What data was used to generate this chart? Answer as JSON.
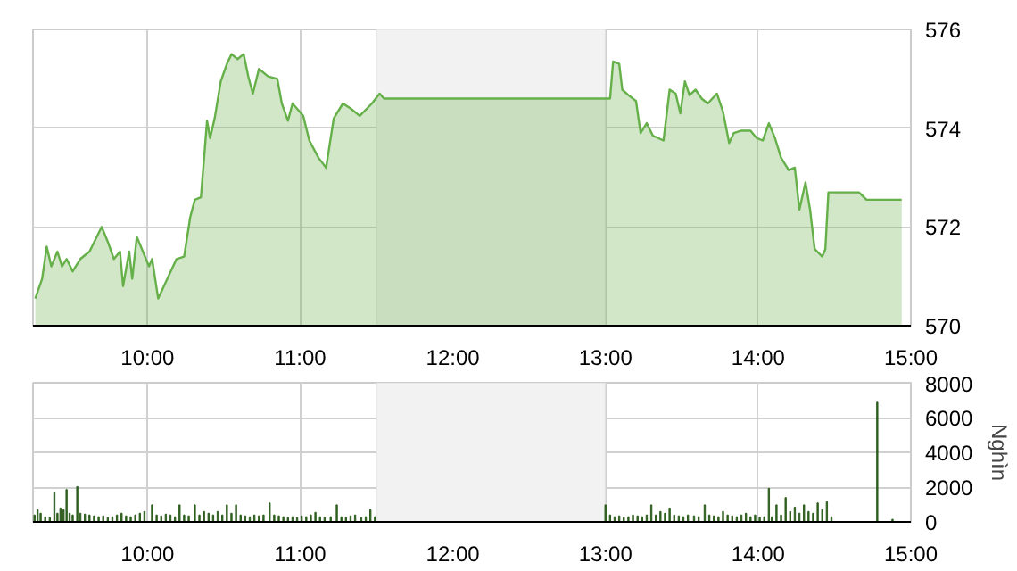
{
  "chart_data": [
    {
      "type": "area",
      "xlim": [
        9.25,
        15.0
      ],
      "ylim": [
        570,
        576
      ],
      "yticks": [
        570,
        572,
        574,
        576
      ],
      "xticks": [
        {
          "value": 10,
          "label": "10:00"
        },
        {
          "value": 11,
          "label": "11:00"
        },
        {
          "value": 12,
          "label": "12:00"
        },
        {
          "value": 13,
          "label": "13:00"
        },
        {
          "value": 14,
          "label": "14:00"
        },
        {
          "value": 15,
          "label": "15:00"
        }
      ],
      "grid": true,
      "bands": [
        {
          "axis": "x",
          "from": 11.5,
          "to": 13.0,
          "color": "#f2f2f2"
        }
      ],
      "series": [
        {
          "color": "#66b04a",
          "x": [
            9.265,
            9.31,
            9.34,
            9.37,
            9.41,
            9.44,
            9.47,
            9.51,
            9.56,
            9.62,
            9.7,
            9.74,
            9.78,
            9.82,
            9.84,
            9.88,
            9.9,
            9.93,
            9.97,
            10.01,
            10.03,
            10.07,
            10.13,
            10.19,
            10.24,
            10.28,
            10.31,
            10.35,
            10.39,
            10.41,
            10.44,
            10.48,
            10.52,
            10.55,
            10.59,
            10.63,
            10.66,
            10.69,
            10.73,
            10.79,
            10.85,
            10.88,
            10.92,
            10.95,
            11.02,
            11.06,
            11.12,
            11.17,
            11.22,
            11.28,
            11.33,
            11.39,
            11.47,
            11.52,
            11.55,
            12.3,
            13.03,
            13.05,
            13.09,
            13.11,
            13.15,
            13.2,
            13.23,
            13.27,
            13.31,
            13.38,
            13.42,
            13.46,
            13.49,
            13.52,
            13.55,
            13.59,
            13.63,
            13.67,
            13.73,
            13.77,
            13.81,
            13.84,
            13.89,
            13.95,
            13.99,
            14.03,
            14.07,
            14.11,
            14.15,
            14.2,
            14.24,
            14.27,
            14.31,
            14.34,
            14.37,
            14.42,
            14.44,
            14.46,
            14.66,
            14.71,
            14.94
          ],
          "values": [
            570.55,
            570.95,
            571.6,
            571.2,
            571.5,
            571.2,
            571.35,
            571.1,
            571.35,
            571.5,
            572.0,
            571.7,
            571.35,
            571.5,
            570.8,
            571.5,
            570.95,
            571.8,
            571.5,
            571.2,
            571.35,
            570.55,
            570.95,
            571.35,
            571.4,
            572.2,
            572.55,
            572.6,
            574.15,
            573.8,
            574.2,
            574.95,
            575.3,
            575.5,
            575.4,
            575.5,
            575.05,
            574.7,
            575.2,
            575.05,
            575.0,
            574.5,
            574.15,
            574.5,
            574.25,
            573.75,
            573.4,
            573.2,
            574.2,
            574.5,
            574.4,
            574.25,
            574.5,
            574.7,
            574.6,
            574.6,
            574.6,
            575.35,
            575.3,
            574.78,
            574.67,
            574.55,
            573.9,
            574.1,
            573.85,
            573.75,
            574.78,
            574.7,
            574.3,
            574.95,
            574.67,
            574.78,
            574.6,
            574.5,
            574.7,
            574.33,
            573.7,
            573.9,
            573.95,
            573.95,
            573.8,
            573.75,
            574.1,
            573.8,
            573.4,
            573.15,
            573.2,
            572.35,
            572.9,
            572.35,
            571.55,
            571.4,
            571.55,
            572.7,
            572.7,
            572.55,
            572.55
          ]
        }
      ]
    },
    {
      "type": "bar",
      "xlim": [
        9.25,
        15.0
      ],
      "ylim": [
        0,
        8000
      ],
      "yticks": [
        0,
        2000,
        4000,
        6000,
        8000
      ],
      "ylabel": "Nghìn",
      "xticks": [
        {
          "value": 10,
          "label": "10:00"
        },
        {
          "value": 11,
          "label": "11:00"
        },
        {
          "value": 12,
          "label": "12:00"
        },
        {
          "value": 13,
          "label": "13:00"
        },
        {
          "value": 14,
          "label": "14:00"
        },
        {
          "value": 15,
          "label": "15:00"
        }
      ],
      "grid": true,
      "bands": [
        {
          "axis": "x",
          "from": 11.5,
          "to": 13.0,
          "color": "#f2f2f2"
        }
      ],
      "series": [
        {
          "color": "#2f5f1f",
          "x": [
            9.26,
            9.28,
            9.3,
            9.33,
            9.36,
            9.39,
            9.41,
            9.43,
            9.45,
            9.47,
            9.49,
            9.51,
            9.54,
            9.56,
            9.59,
            9.62,
            9.65,
            9.68,
            9.71,
            9.74,
            9.77,
            9.8,
            9.83,
            9.86,
            9.89,
            9.92,
            9.95,
            9.98,
            10.03,
            10.06,
            10.09,
            10.12,
            10.15,
            10.18,
            10.21,
            10.24,
            10.27,
            10.31,
            10.34,
            10.37,
            10.4,
            10.43,
            10.46,
            10.49,
            10.52,
            10.55,
            10.58,
            10.61,
            10.64,
            10.67,
            10.7,
            10.73,
            10.76,
            10.8,
            10.83,
            10.86,
            10.89,
            10.92,
            10.95,
            10.98,
            11.01,
            11.04,
            11.07,
            11.1,
            11.13,
            11.16,
            11.2,
            11.24,
            11.27,
            11.3,
            11.33,
            11.36,
            11.4,
            11.43,
            11.46,
            11.49,
            13.0,
            13.03,
            13.06,
            13.09,
            13.12,
            13.15,
            13.18,
            13.21,
            13.24,
            13.27,
            13.3,
            13.33,
            13.36,
            13.39,
            13.42,
            13.45,
            13.48,
            13.51,
            13.54,
            13.58,
            13.61,
            13.65,
            13.68,
            13.71,
            13.74,
            13.77,
            13.8,
            13.83,
            13.86,
            13.89,
            13.92,
            13.95,
            13.98,
            14.01,
            14.04,
            14.07,
            14.09,
            14.12,
            14.15,
            14.18,
            14.21,
            14.24,
            14.27,
            14.3,
            14.33,
            14.36,
            14.39,
            14.42,
            14.45,
            14.48,
            14.78,
            14.88
          ],
          "values": [
            400,
            700,
            500,
            300,
            250,
            1680,
            500,
            800,
            700,
            1860,
            500,
            400,
            2030,
            500,
            450,
            400,
            350,
            300,
            350,
            250,
            300,
            400,
            500,
            350,
            300,
            400,
            500,
            600,
            980,
            400,
            350,
            450,
            400,
            300,
            980,
            400,
            350,
            980,
            400,
            600,
            500,
            400,
            600,
            400,
            980,
            500,
            980,
            400,
            350,
            300,
            400,
            350,
            400,
            1090,
            400,
            350,
            300,
            250,
            300,
            250,
            350,
            300,
            400,
            550,
            300,
            250,
            300,
            980,
            300,
            250,
            350,
            400,
            250,
            300,
            700,
            300,
            980,
            400,
            300,
            350,
            250,
            300,
            400,
            350,
            300,
            400,
            980,
            400,
            600,
            500,
            800,
            400,
            350,
            300,
            400,
            350,
            300,
            980,
            400,
            350,
            300,
            600,
            400,
            350,
            300,
            400,
            500,
            300,
            400,
            250,
            300,
            1930,
            300,
            980,
            400,
            1400,
            600,
            850,
            500,
            980,
            600,
            500,
            1090,
            700,
            1160,
            300,
            6880,
            150
          ]
        }
      ]
    }
  ]
}
